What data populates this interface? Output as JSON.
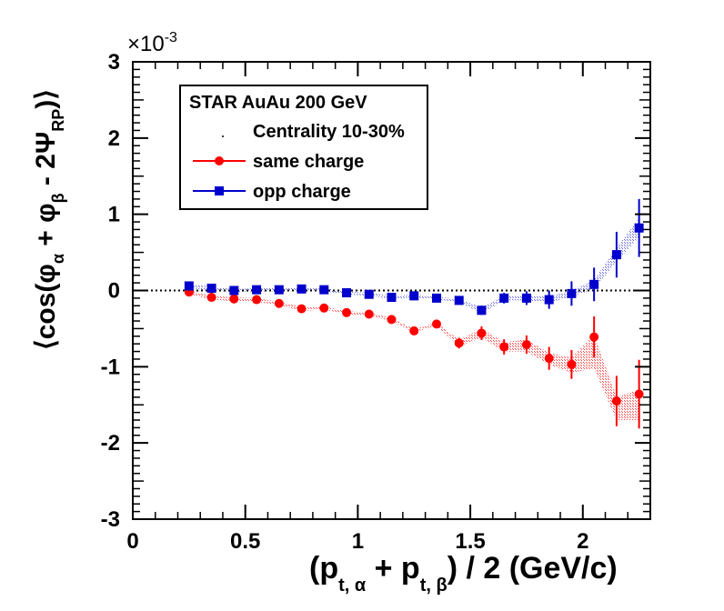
{
  "chart_data": {
    "type": "scatter",
    "title": "",
    "exponent_label": "×10",
    "exponent_power": "-3",
    "xlabel": {
      "open": "(p",
      "sub_alpha": "t, α",
      "plus": " + p",
      "sub_beta": "t, β",
      "close": ") / 2  (GeV/c)"
    },
    "ylabel": {
      "open": "⟨cos(φ",
      "sub_alpha": "α",
      "plus": " + φ",
      "sub_beta": "β",
      "minus": " - 2Ψ",
      "sub_rp": "RP",
      "close": ")⟩"
    },
    "xlim": [
      0,
      2.3
    ],
    "ylim": [
      -3,
      3
    ],
    "x_ticks": [
      {
        "value": 0,
        "label": "0"
      },
      {
        "value": 0.5,
        "label": "0.5"
      },
      {
        "value": 1,
        "label": "1"
      },
      {
        "value": 1.5,
        "label": "1.5"
      },
      {
        "value": 2,
        "label": "2"
      }
    ],
    "y_ticks": [
      {
        "value": -3,
        "label": "-3"
      },
      {
        "value": -2,
        "label": "-2"
      },
      {
        "value": -1,
        "label": "-1"
      },
      {
        "value": 0,
        "label": "0"
      },
      {
        "value": 1,
        "label": "1"
      },
      {
        "value": 2,
        "label": "2"
      },
      {
        "value": 3,
        "label": "3"
      }
    ],
    "reference_line": 0,
    "legend": {
      "header": "STAR  AuAu 200 GeV",
      "centrality": "Centrality 10-30%",
      "placement": "top-left"
    },
    "series": [
      {
        "name": "same charge",
        "color": "#ff0000",
        "marker": "circle",
        "x": [
          0.25,
          0.35,
          0.45,
          0.55,
          0.65,
          0.75,
          0.85,
          0.95,
          1.05,
          1.15,
          1.25,
          1.35,
          1.45,
          1.55,
          1.65,
          1.75,
          1.85,
          1.95,
          2.05,
          2.15,
          2.25
        ],
        "y": [
          -0.02,
          -0.09,
          -0.11,
          -0.12,
          -0.17,
          -0.24,
          -0.23,
          -0.29,
          -0.31,
          -0.38,
          -0.53,
          -0.44,
          -0.69,
          -0.56,
          -0.74,
          -0.71,
          -0.89,
          -0.97,
          -0.61,
          -1.45,
          -1.36
        ],
        "err": [
          0.02,
          0.02,
          0.02,
          0.02,
          0.03,
          0.03,
          0.03,
          0.03,
          0.04,
          0.04,
          0.05,
          0.05,
          0.07,
          0.09,
          0.1,
          0.12,
          0.15,
          0.19,
          0.27,
          0.33,
          0.45
        ],
        "sys_low": [
          -0.05,
          -0.12,
          -0.14,
          -0.15,
          -0.19,
          -0.27,
          -0.25,
          -0.31,
          -0.33,
          -0.4,
          -0.55,
          -0.46,
          -0.73,
          -0.62,
          -0.8,
          -0.8,
          -0.97,
          -1.08,
          -1.02,
          -1.7,
          -1.7
        ],
        "sys_high": [
          0.0,
          -0.07,
          -0.09,
          -0.1,
          -0.15,
          -0.21,
          -0.21,
          -0.27,
          -0.29,
          -0.36,
          -0.51,
          -0.42,
          -0.65,
          -0.5,
          -0.68,
          -0.64,
          -0.82,
          -0.88,
          -0.58,
          -1.4,
          -1.3
        ]
      },
      {
        "name": "opp charge",
        "color": "#0000cc",
        "marker": "square",
        "x": [
          0.25,
          0.35,
          0.45,
          0.55,
          0.65,
          0.75,
          0.85,
          0.95,
          1.05,
          1.15,
          1.25,
          1.35,
          1.45,
          1.55,
          1.65,
          1.75,
          1.85,
          1.95,
          2.05,
          2.15,
          2.25
        ],
        "y": [
          0.06,
          0.03,
          0.0,
          0.01,
          0.01,
          0.02,
          0.01,
          -0.03,
          -0.05,
          -0.09,
          -0.07,
          -0.1,
          -0.13,
          -0.26,
          -0.1,
          -0.1,
          -0.12,
          -0.04,
          0.08,
          0.47,
          0.82
        ],
        "err": [
          0.02,
          0.02,
          0.02,
          0.02,
          0.02,
          0.02,
          0.02,
          0.02,
          0.03,
          0.03,
          0.04,
          0.04,
          0.05,
          0.06,
          0.07,
          0.09,
          0.12,
          0.16,
          0.22,
          0.3,
          0.38
        ],
        "sys_low": [
          0.03,
          0.0,
          -0.02,
          -0.01,
          -0.01,
          0.0,
          -0.01,
          -0.05,
          -0.07,
          -0.11,
          -0.09,
          -0.12,
          -0.15,
          -0.3,
          -0.13,
          -0.13,
          -0.16,
          -0.08,
          0.02,
          0.38,
          0.7
        ],
        "sys_high": [
          0.08,
          0.05,
          0.02,
          0.03,
          0.03,
          0.04,
          0.03,
          -0.01,
          -0.03,
          -0.07,
          -0.05,
          -0.08,
          -0.11,
          -0.22,
          -0.07,
          -0.07,
          -0.08,
          0.0,
          0.14,
          0.56,
          0.95
        ]
      }
    ]
  }
}
